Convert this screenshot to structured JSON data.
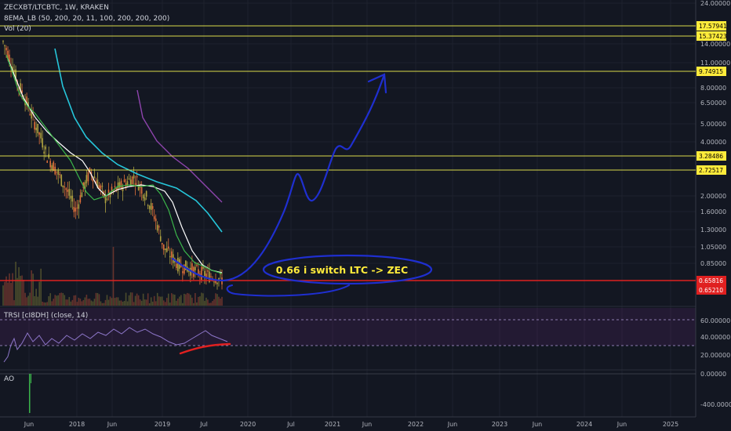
{
  "header": {
    "symbol_line": "ZECXBT/LTCBTC, 1W, KRAKEN",
    "ma_line": "8EMA_LB (50, 200, 20, 11, 100, 200, 200, 200)",
    "vol_line": "Vol (20)"
  },
  "rsi": {
    "label": "TRSI [cI8DH] (close, 14)"
  },
  "ao": {
    "label": "AO"
  },
  "annotation": {
    "text": "0.66 i switch LTC -> ZEC"
  },
  "colors": {
    "background": "#131722",
    "yellow_level": "#d9d94a",
    "red_level": "#e02020",
    "annotation": "#1f2fd0",
    "annotation_text": "#ffeb3b",
    "ema_cyan": "#26c6da",
    "ema_purple": "#8e44ad",
    "ema_white": "#ffffff",
    "ema_green": "#3bb54a",
    "rsi_line": "#8d76c9",
    "rsi_trend": "#e02020"
  },
  "chart_data": {
    "type": "line",
    "title": "",
    "price_axis_ticks": [
      "24.00000",
      "14.00000",
      "11.00000",
      "8.00000",
      "6.50000",
      "5.00000",
      "4.00000",
      "2.00000",
      "1.60000",
      "1.30000",
      "1.05000",
      "0.85000"
    ],
    "rsi_axis_ticks": [
      "60.00000",
      "40.00000",
      "20.00000"
    ],
    "ao_axis_ticks": [
      "0.00000",
      "-400.00000"
    ],
    "time_axis_ticks": [
      "Jun",
      "2018",
      "Jun",
      "2019",
      "Jul",
      "2020",
      "Jul",
      "2021",
      "Jun",
      "2022",
      "Jun",
      "2023",
      "Jun",
      "2024",
      "Jun",
      "2025"
    ],
    "horizontal_levels": [
      {
        "value": "17.57941",
        "color": "yellow"
      },
      {
        "value": "15.37423",
        "color": "yellow"
      },
      {
        "value": "9.74915",
        "color": "yellow"
      },
      {
        "value": "3.28486",
        "color": "yellow"
      },
      {
        "value": "2.72517",
        "color": "yellow"
      },
      {
        "value": "0.65816",
        "color": "red"
      }
    ],
    "current_price": "0.65210",
    "close_trend": [
      14.5,
      8.5,
      5.4,
      3.3,
      2.4,
      1.6,
      2.7,
      1.9,
      2.2,
      2.5,
      1.8,
      1.0,
      0.8,
      0.75,
      0.7,
      0.66
    ]
  }
}
